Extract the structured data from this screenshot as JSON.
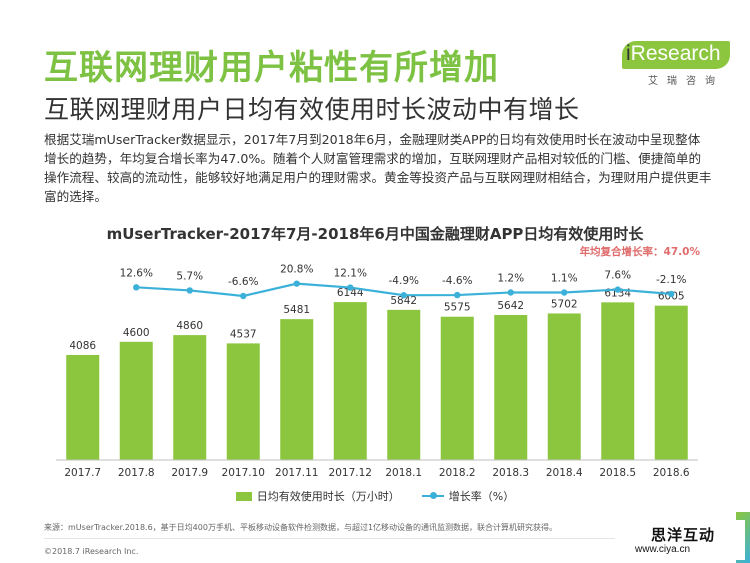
{
  "header": {
    "title": "互联网理财用户粘性有所增加",
    "subtitle": "互联网理财用户日均有效使用时长波动中有增长"
  },
  "logo": {
    "brand_prefix": "i",
    "brand_main": "Research",
    "brand_cn": "艾瑞咨询",
    "brand_color": "#8cc63f"
  },
  "body_text": "根据艾瑞mUserTracker数据显示，2017年7月到2018年6月，金融理财类APP的日均有效使用时长在波动中呈现整体增长的趋势，年均复合增长率为47.0%。随着个人财富管理需求的增加，互联网理财产品相对较低的门槛、便捷简单的操作流程、较高的流动性，能够较好地满足用户的理财需求。黄金等投资产品与互联网理财相结合，为理财用户提供更丰富的选择。",
  "chart_data": {
    "type": "bar",
    "title": "mUserTracker-2017年7月-2018年6月中国金融理财APP日均有效使用时长",
    "annotation": "年均复合增长率：47.0%",
    "categories": [
      "2017.7",
      "2017.8",
      "2017.9",
      "2017.10",
      "2017.11",
      "2017.12",
      "2018.1",
      "2018.2",
      "2018.3",
      "2018.4",
      "2018.5",
      "2018.6"
    ],
    "series": [
      {
        "name": "日均有效使用时长（万小时）",
        "type": "bar",
        "color": "#8cc63f",
        "values": [
          4086,
          4600,
          4860,
          4537,
          5481,
          6144,
          5842,
          5575,
          5642,
          5702,
          6134,
          6005
        ],
        "labels": [
          "4086",
          "4600",
          "4860",
          "4537",
          "5481",
          "6144",
          "5842",
          "5575",
          "5642",
          "5702",
          "6134",
          "6005"
        ]
      },
      {
        "name": "增长率（%）",
        "type": "line",
        "color": "#3bb1d9",
        "values": [
          12.6,
          5.7,
          -6.6,
          20.8,
          12.1,
          -4.9,
          -4.6,
          1.2,
          1.1,
          7.6,
          -2.1
        ],
        "labels": [
          "12.6%",
          "5.7%",
          "-6.6%",
          "20.8%",
          "12.1%",
          "-4.9%",
          "-4.6%",
          "1.2%",
          "1.1%",
          "7.6%",
          "-2.1%"
        ],
        "start_index": 1
      }
    ],
    "xlabel": "",
    "ylabel": "",
    "ylim": [
      0,
      6500
    ],
    "grid": false,
    "legend_position": "bottom"
  },
  "legend": {
    "bar_label": "日均有效使用时长（万小时）",
    "line_label": "增长率（%）"
  },
  "footer": {
    "source": "来源：mUserTracker.2018.6，基于日均400万手机、平板移动设备软件检测数据，与超过1亿移动设备的通讯监测数据，联合计算机研究获得。",
    "copyright": "©2018.7 iResearch Inc."
  },
  "watermark": {
    "name": "思洋互动",
    "url": "www.ciya.cn"
  }
}
